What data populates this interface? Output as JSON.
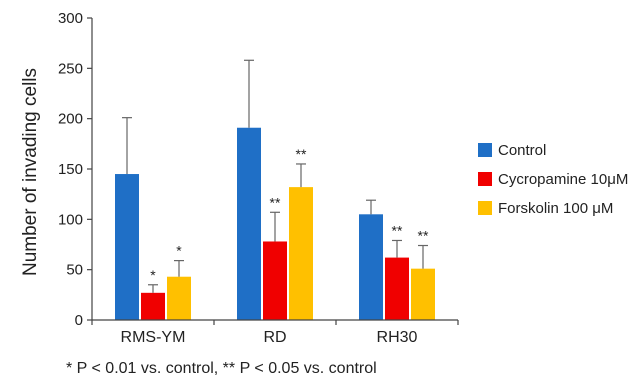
{
  "chart_data": {
    "type": "bar",
    "categories": [
      "RMS-YM",
      "RD",
      "RH30"
    ],
    "ylabel": "Number of invading cells",
    "ylim": [
      0,
      300
    ],
    "yticks": [
      0,
      50,
      100,
      150,
      200,
      250,
      300
    ],
    "grid": false,
    "legend_position": "right",
    "series": [
      {
        "name": "Control",
        "color": "#1f6fc6",
        "values": [
          145,
          191,
          105
        ],
        "errors": [
          56,
          67,
          14
        ],
        "significance": [
          "",
          "",
          ""
        ]
      },
      {
        "name": "Cycropamine 10μM",
        "color": "#f00000",
        "values": [
          27,
          78,
          62
        ],
        "errors": [
          8,
          29,
          17
        ],
        "significance": [
          "*",
          "**",
          "**"
        ]
      },
      {
        "name": "Forskolin 100 μM",
        "color": "#ffc000",
        "values": [
          43,
          132,
          51
        ],
        "errors": [
          16,
          23,
          23
        ],
        "significance": [
          "*",
          "**",
          "**"
        ]
      }
    ],
    "footnote": "*  P < 0.01 vs. control, ** P < 0.05 vs. control"
  }
}
